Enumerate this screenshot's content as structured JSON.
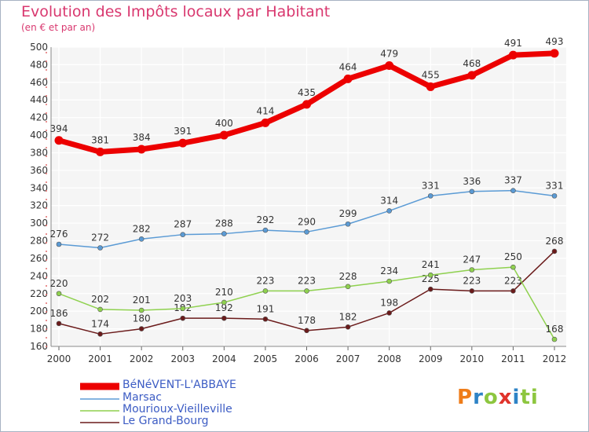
{
  "chart_data": {
    "type": "line",
    "title": "Evolution des Impôts locaux par Habitant",
    "subtitle": "(en € et par an)",
    "x": [
      "2000",
      "2001",
      "2002",
      "2003",
      "2004",
      "2005",
      "2006",
      "2007",
      "2008",
      "2009",
      "2010",
      "2011",
      "2012"
    ],
    "yticks": [
      160,
      180,
      200,
      220,
      240,
      260,
      280,
      300,
      320,
      340,
      360,
      380,
      400,
      420,
      440,
      460,
      480,
      500
    ],
    "ylim": [
      160,
      500
    ],
    "grid": true,
    "legend_position": "bottom-left",
    "series": [
      {
        "name": "BéNéVENT-L'ABBAYE",
        "color": "#ec0000",
        "values": [
          394,
          381,
          384,
          391,
          400,
          414,
          435,
          464,
          479,
          455,
          468,
          491,
          493
        ]
      },
      {
        "name": "Marsac",
        "color": "#5b9bd5",
        "values": [
          276,
          272,
          282,
          287,
          288,
          292,
          290,
          299,
          314,
          331,
          336,
          337,
          331
        ]
      },
      {
        "name": "Mourioux-Vieilleville",
        "color": "#8fd14f",
        "values": [
          220,
          202,
          201,
          203,
          210,
          223,
          223,
          228,
          234,
          241,
          247,
          250,
          168
        ]
      },
      {
        "name": "Le Grand-Bourg",
        "color": "#6b1b1b",
        "values": [
          186,
          174,
          180,
          192,
          192,
          191,
          178,
          182,
          198,
          225,
          223,
          223,
          268
        ]
      }
    ]
  },
  "logo": {
    "text": "Proxiti",
    "letters": [
      "P",
      "r",
      "o",
      "x",
      "i",
      "t",
      "i"
    ],
    "colors": [
      "#ef7d1a",
      "#2e83c6",
      "#8dc63f",
      "#e0332b",
      "#2e83c6",
      "#8dc63f",
      "#8dc63f"
    ]
  }
}
